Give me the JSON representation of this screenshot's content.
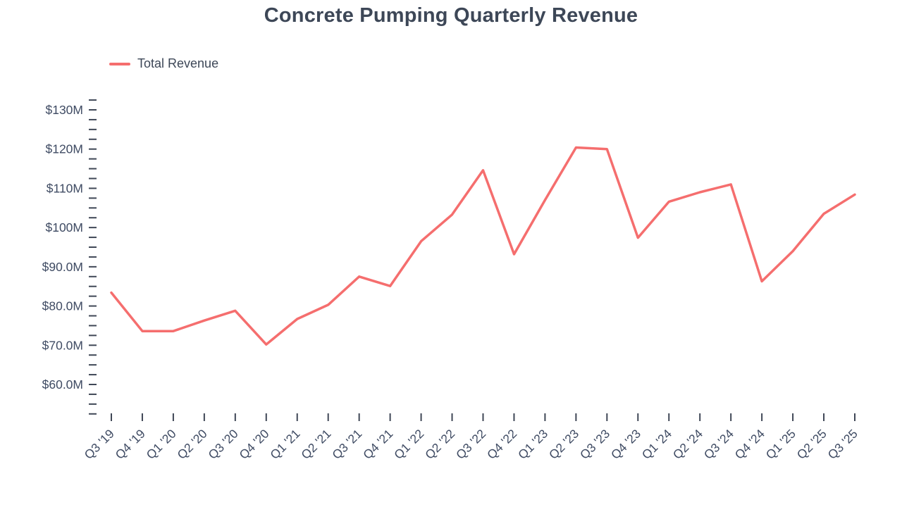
{
  "title": "Concrete Pumping Quarterly Revenue",
  "legend": {
    "label": "Total Revenue",
    "color": "#f56e6e"
  },
  "chart_data": {
    "type": "line",
    "title": "Concrete Pumping Quarterly Revenue",
    "series": [
      {
        "name": "Total Revenue",
        "values": [
          83.4,
          73.6,
          73.6,
          76.3,
          78.8,
          70.2,
          76.7,
          80.3,
          87.5,
          85.1,
          96.5,
          103.3,
          114.6,
          93.2,
          107.0,
          120.4,
          120.0,
          97.4,
          106.6,
          109.0,
          111.0,
          86.3,
          94.0,
          103.5,
          108.4
        ]
      }
    ],
    "categories": [
      "Q3 '19",
      "Q4 '19",
      "Q1 '20",
      "Q2 '20",
      "Q3 '20",
      "Q4 '20",
      "Q1 '21",
      "Q2 '21",
      "Q3 '21",
      "Q4 '21",
      "Q1 '22",
      "Q2 '22",
      "Q3 '22",
      "Q4 '22",
      "Q1 '23",
      "Q2 '23",
      "Q3 '23",
      "Q4 '23",
      "Q1 '24",
      "Q2 '24",
      "Q3 '24",
      "Q4 '24",
      "Q1 '25",
      "Q2 '25",
      "Q3 '25"
    ],
    "unit": "USD millions",
    "ylim": [
      60,
      130
    ],
    "y_ticks": [
      {
        "value": 130,
        "label": "$130M"
      },
      {
        "value": 120,
        "label": "$120M"
      },
      {
        "value": 110,
        "label": "$110M"
      },
      {
        "value": 100,
        "label": "$100M"
      },
      {
        "value": 90,
        "label": "$90.0M"
      },
      {
        "value": 80,
        "label": "$80.0M"
      },
      {
        "value": 70,
        "label": "$70.0M"
      },
      {
        "value": 60,
        "label": "$60.0M"
      }
    ],
    "minor_tick_step": 2.5,
    "grid": false,
    "legend_position": "top-left",
    "line_color": "#f56e6e",
    "tick_color": "#3f4756"
  }
}
